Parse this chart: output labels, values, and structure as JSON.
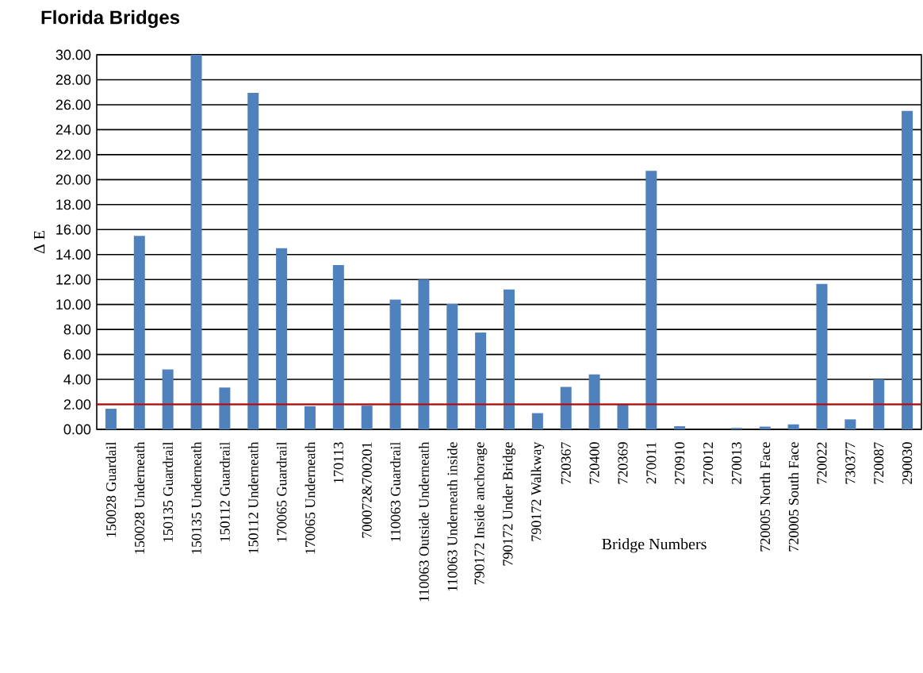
{
  "chart_data": {
    "type": "bar",
    "title": "Florida Bridges",
    "xlabel": "Bridge Numbers",
    "ylabel": "Δ E",
    "categories": [
      "150028 Guardail",
      "150028 Underneath",
      "150135 Guardrail",
      "150135 Underneath",
      "150112 Guardrail",
      "150112 Underneath",
      "170065 Guardrail",
      "170065 Underneath",
      "170113",
      "700072&700201",
      "110063 Guardrail",
      "110063 Outside Underneath",
      "110063 Underneath inside",
      "790172 Inside anchorage",
      "790172 Under Bridge",
      "790172 Walkway",
      "720367",
      "720400",
      "720369",
      "270011",
      "270910",
      "270012",
      "270013",
      "720005 North Face",
      "720005 South Face",
      "720022",
      "730377",
      "720087",
      "290030"
    ],
    "values": [
      1.65,
      15.5,
      4.8,
      30.0,
      3.35,
      26.95,
      14.5,
      1.85,
      13.15,
      1.9,
      10.4,
      12.0,
      10.05,
      7.75,
      11.2,
      1.3,
      3.4,
      4.4,
      2.0,
      20.7,
      0.25,
      null,
      0.12,
      0.22,
      0.4,
      11.65,
      0.8,
      4.0,
      25.5
    ],
    "color": "#4f81bd",
    "ylim": [
      0,
      30
    ],
    "yticks": [
      {
        "value": 0,
        "label": "0.00"
      },
      {
        "value": 2,
        "label": "2.00"
      },
      {
        "value": 4,
        "label": "4.00"
      },
      {
        "value": 6,
        "label": "6.00"
      },
      {
        "value": 8,
        "label": "8.00"
      },
      {
        "value": 10,
        "label": "10.00"
      },
      {
        "value": 12,
        "label": "12.00"
      },
      {
        "value": 14,
        "label": "14.00"
      },
      {
        "value": 16,
        "label": "16.00"
      },
      {
        "value": 18,
        "label": "18.00"
      },
      {
        "value": 20,
        "label": "20.00"
      },
      {
        "value": 22,
        "label": "22.00"
      },
      {
        "value": 24,
        "label": "24.00"
      },
      {
        "value": 26,
        "label": "26.00"
      },
      {
        "value": 28,
        "label": "28.00"
      },
      {
        "value": 30,
        "label": "30.00"
      }
    ],
    "grid": "y",
    "ref_lines": [
      {
        "axis": "y",
        "value": 2,
        "color": "#c00000"
      }
    ]
  }
}
